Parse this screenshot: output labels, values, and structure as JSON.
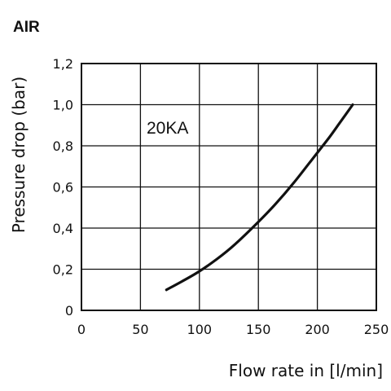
{
  "chart_data": {
    "type": "line",
    "title": "AIR",
    "xlabel": "Flow rate in [l/min]",
    "ylabel": "Pressure drop (bar)",
    "xlim": [
      0,
      250
    ],
    "ylim": [
      0,
      1.2
    ],
    "x_ticks": [
      {
        "value": 0,
        "label": "0"
      },
      {
        "value": 50,
        "label": "50"
      },
      {
        "value": 100,
        "label": "100"
      },
      {
        "value": 150,
        "label": "150"
      },
      {
        "value": 200,
        "label": "200"
      },
      {
        "value": 250,
        "label": "250"
      }
    ],
    "y_ticks": [
      {
        "value": 0,
        "label": "0"
      },
      {
        "value": 0.2,
        "label": "0,2"
      },
      {
        "value": 0.4,
        "label": "0,4"
      },
      {
        "value": 0.6,
        "label": "0,6"
      },
      {
        "value": 0.8,
        "label": "0,8"
      },
      {
        "value": 1.0,
        "label": "1,0"
      },
      {
        "value": 1.2,
        "label": "1,2"
      }
    ],
    "grid": true,
    "series": [
      {
        "name": "20KA",
        "x": [
          72,
          85,
          100,
          115,
          130,
          150,
          165,
          180,
          195,
          210,
          220,
          230
        ],
        "y": [
          0.1,
          0.14,
          0.19,
          0.25,
          0.32,
          0.43,
          0.52,
          0.62,
          0.73,
          0.84,
          0.92,
          1.0
        ]
      }
    ]
  }
}
